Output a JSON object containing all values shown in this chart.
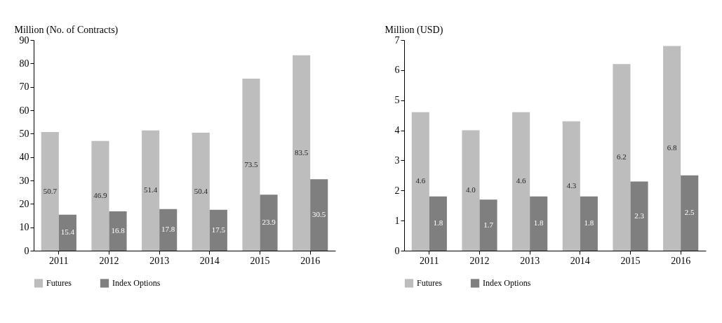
{
  "chart_data": [
    {
      "type": "bar",
      "ylabel": "Million (No. of Contracts)",
      "categories": [
        "2011",
        "2012",
        "2013",
        "2014",
        "2015",
        "2016"
      ],
      "series": [
        {
          "name": "Futures",
          "color": "#bdbdbd",
          "values": [
            50.7,
            46.9,
            51.4,
            50.4,
            73.5,
            83.5
          ],
          "value_labels": [
            "50.7",
            "46.9",
            "51.4",
            "50.4",
            "73.5",
            "83.5"
          ]
        },
        {
          "name": "Index Options",
          "color": "#7f7f7f",
          "values": [
            15.4,
            16.8,
            17.8,
            17.5,
            23.9,
            30.5
          ],
          "value_labels": [
            "15.4",
            "16.8",
            "17.8",
            "17.5",
            "23.9",
            "30.5"
          ]
        }
      ],
      "ylim": [
        0,
        90
      ],
      "yticks": [
        0,
        10,
        20,
        30,
        40,
        50,
        60,
        70,
        80,
        90
      ],
      "legend": "bottom",
      "grid": false
    },
    {
      "type": "bar",
      "ylabel": "Million (USD)",
      "categories": [
        "2011",
        "2012",
        "2013",
        "2014",
        "2015",
        "2016"
      ],
      "series": [
        {
          "name": "Futures",
          "color": "#bdbdbd",
          "values": [
            4.6,
            4.0,
            4.6,
            4.3,
            6.2,
            6.8
          ],
          "value_labels": [
            "4.6",
            "4.0",
            "4.6",
            "4.3",
            "6.2",
            "6.8"
          ]
        },
        {
          "name": "Index Options",
          "color": "#7f7f7f",
          "values": [
            1.8,
            1.7,
            1.8,
            1.8,
            2.3,
            2.5
          ],
          "value_labels": [
            "1.8",
            "1.7",
            "1.8",
            "1.8",
            "2.3",
            "2.5"
          ]
        }
      ],
      "ylim": [
        0,
        7
      ],
      "yticks": [
        0,
        1,
        2,
        3,
        4,
        5,
        6,
        7
      ],
      "legend": "bottom",
      "grid": false
    }
  ]
}
